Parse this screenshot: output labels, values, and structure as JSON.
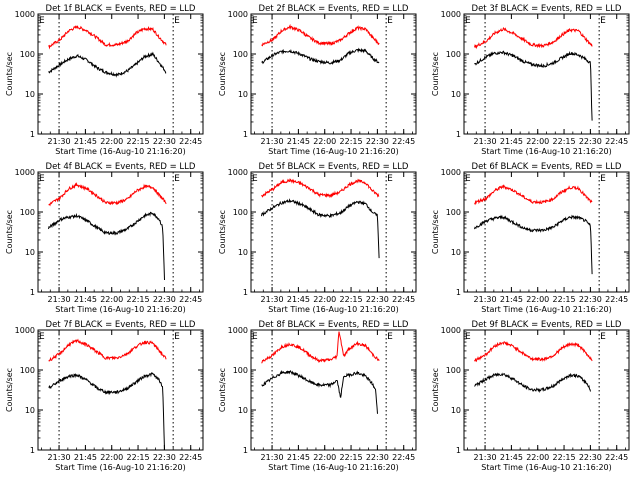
{
  "figure": {
    "ylabel": "Counts/sec",
    "xlabel": "Start Time (16-Aug-10 21:16:20)",
    "x_ticks": [
      "21:30",
      "21:45",
      "22:00",
      "22:15",
      "22:30",
      "22:45"
    ],
    "y_ticks": [
      "1",
      "10",
      "100",
      "1000"
    ],
    "colors": {
      "events": "#000000",
      "lld": "#ff0000",
      "axes": "#000000"
    }
  },
  "chart_data": [
    {
      "type": "line",
      "title": "Det 1f BLACK = Events, RED = LLD",
      "xlabel": "Start Time (16-Aug-10 21:16:20)",
      "ylabel": "Counts/sec",
      "yscale": "log",
      "ylim": [
        1,
        1000
      ],
      "xlim": [
        "21:18",
        "22:52"
      ],
      "marker_lines": [
        "21:30",
        "22:35"
      ],
      "E_labels": [
        {
          "x": "21:18",
          "text": "E"
        },
        {
          "x": "22:35",
          "text": "E"
        }
      ],
      "x_minutes": [
        21.0,
        32.0,
        45.0,
        60.0,
        72.0,
        85.0,
        92.0
      ],
      "series": [
        {
          "name": "Events",
          "color": "#000000",
          "x_minutes": [
            21,
            28,
            33,
            38,
            44,
            50,
            55,
            62,
            68,
            73,
            78,
            83,
            87,
            91
          ],
          "values": [
            35,
            55,
            75,
            90,
            70,
            45,
            35,
            30,
            38,
            55,
            85,
            100,
            60,
            35
          ]
        },
        {
          "name": "LLD",
          "color": "#ff0000",
          "x_minutes": [
            21,
            28,
            33,
            38,
            44,
            50,
            55,
            62,
            68,
            73,
            78,
            83,
            87,
            91
          ],
          "values": [
            150,
            230,
            380,
            480,
            380,
            250,
            170,
            170,
            210,
            330,
            430,
            420,
            260,
            170
          ]
        }
      ]
    },
    {
      "type": "line",
      "title": "Det 2f BLACK = Events, RED = LLD",
      "xlabel": "Start Time (16-Aug-10 21:16:20)",
      "ylabel": "Counts/sec",
      "yscale": "log",
      "ylim": [
        1,
        1000
      ],
      "xlim": [
        "21:18",
        "22:52"
      ],
      "marker_lines": [
        "21:30",
        "22:35"
      ],
      "E_labels": [
        {
          "x": "21:18",
          "text": "E"
        },
        {
          "x": "22:35",
          "text": "E"
        }
      ],
      "series": [
        {
          "name": "Events",
          "color": "#000000",
          "x_minutes": [
            21,
            28,
            33,
            38,
            44,
            50,
            55,
            62,
            68,
            73,
            78,
            83,
            87,
            91
          ],
          "values": [
            60,
            95,
            115,
            120,
            100,
            75,
            65,
            60,
            70,
            105,
            125,
            120,
            80,
            60
          ]
        },
        {
          "name": "LLD",
          "color": "#ff0000",
          "x_minutes": [
            21,
            28,
            33,
            38,
            44,
            50,
            55,
            62,
            68,
            73,
            78,
            83,
            87,
            91
          ],
          "values": [
            170,
            230,
            380,
            480,
            380,
            250,
            190,
            180,
            220,
            330,
            450,
            420,
            260,
            180
          ]
        }
      ]
    },
    {
      "type": "line",
      "title": "Det 3f BLACK = Events, RED = LLD",
      "xlabel": "Start Time (16-Aug-10 21:16:20)",
      "ylabel": "Counts/sec",
      "yscale": "log",
      "ylim": [
        1,
        1000
      ],
      "xlim": [
        "21:18",
        "22:52"
      ],
      "marker_lines": [
        "21:30",
        "22:35"
      ],
      "E_labels": [
        {
          "x": "21:18",
          "text": "E"
        },
        {
          "x": "22:35",
          "text": "E"
        }
      ],
      "series": [
        {
          "name": "Events",
          "color": "#000000",
          "x_minutes": [
            21,
            28,
            33,
            38,
            44,
            50,
            55,
            62,
            68,
            73,
            78,
            83,
            87,
            90,
            91
          ],
          "values": [
            55,
            85,
            105,
            110,
            90,
            65,
            55,
            50,
            60,
            80,
            105,
            95,
            75,
            60,
            2
          ]
        },
        {
          "name": "LLD",
          "color": "#ff0000",
          "x_minutes": [
            21,
            28,
            33,
            38,
            44,
            50,
            55,
            62,
            68,
            73,
            78,
            83,
            87,
            91
          ],
          "values": [
            150,
            210,
            330,
            420,
            330,
            230,
            170,
            160,
            200,
            300,
            400,
            380,
            240,
            160
          ]
        }
      ]
    },
    {
      "type": "line",
      "title": "Det 4f BLACK = Events, RED = LLD",
      "xlabel": "Start Time (16-Aug-10 21:16:20)",
      "ylabel": "Counts/sec",
      "yscale": "log",
      "ylim": [
        1,
        1000
      ],
      "xlim": [
        "21:18",
        "22:52"
      ],
      "marker_lines": [
        "21:30",
        "22:35"
      ],
      "E_labels": [
        {
          "x": "21:18",
          "text": "E"
        },
        {
          "x": "22:35",
          "text": "E"
        }
      ],
      "series": [
        {
          "name": "Events",
          "color": "#000000",
          "x_minutes": [
            21,
            28,
            33,
            38,
            44,
            50,
            55,
            62,
            68,
            73,
            78,
            83,
            87,
            89,
            90
          ],
          "values": [
            40,
            65,
            75,
            80,
            60,
            40,
            30,
            30,
            38,
            55,
            80,
            95,
            65,
            40,
            2
          ]
        },
        {
          "name": "LLD",
          "color": "#ff0000",
          "x_minutes": [
            21,
            28,
            33,
            38,
            44,
            50,
            55,
            62,
            68,
            73,
            78,
            83,
            87,
            91
          ],
          "values": [
            150,
            230,
            380,
            480,
            380,
            250,
            170,
            170,
            210,
            330,
            430,
            420,
            260,
            170
          ]
        }
      ]
    },
    {
      "type": "line",
      "title": "Det 5f BLACK = Events, RED = LLD",
      "xlabel": "Start Time (16-Aug-10 21:16:20)",
      "ylabel": "Counts/sec",
      "yscale": "log",
      "ylim": [
        1,
        1000
      ],
      "xlim": [
        "21:18",
        "22:52"
      ],
      "marker_lines": [
        "21:30",
        "22:35"
      ],
      "E_labels": [
        {
          "x": "21:18",
          "text": "E"
        },
        {
          "x": "22:35",
          "text": "E"
        }
      ],
      "series": [
        {
          "name": "Events",
          "color": "#000000",
          "x_minutes": [
            21,
            28,
            33,
            38,
            44,
            50,
            55,
            62,
            68,
            73,
            78,
            83,
            87,
            90,
            91
          ],
          "values": [
            85,
            130,
            170,
            190,
            160,
            115,
            85,
            80,
            95,
            140,
            180,
            160,
            100,
            80,
            7
          ]
        },
        {
          "name": "LLD",
          "color": "#ff0000",
          "x_minutes": [
            21,
            28,
            33,
            38,
            44,
            50,
            55,
            62,
            68,
            73,
            78,
            83,
            87,
            91
          ],
          "values": [
            250,
            380,
            550,
            620,
            520,
            380,
            270,
            260,
            320,
            480,
            600,
            540,
            340,
            250
          ]
        }
      ]
    },
    {
      "type": "line",
      "title": "Det 6f BLACK = Events, RED = LLD",
      "xlabel": "Start Time (16-Aug-10 21:16:20)",
      "ylabel": "Counts/sec",
      "yscale": "log",
      "ylim": [
        1,
        1000
      ],
      "xlim": [
        "21:18",
        "22:52"
      ],
      "marker_lines": [
        "21:30",
        "22:35"
      ],
      "E_labels": [
        {
          "x": "21:18",
          "text": "E"
        },
        {
          "x": "22:35",
          "text": "E"
        }
      ],
      "series": [
        {
          "name": "Events",
          "color": "#000000",
          "x_minutes": [
            21,
            28,
            33,
            38,
            44,
            50,
            55,
            62,
            68,
            73,
            78,
            83,
            87,
            90,
            91
          ],
          "values": [
            40,
            60,
            70,
            75,
            55,
            40,
            35,
            35,
            42,
            60,
            75,
            72,
            60,
            45,
            3
          ]
        },
        {
          "name": "LLD",
          "color": "#ff0000",
          "x_minutes": [
            21,
            28,
            33,
            38,
            44,
            50,
            55,
            62,
            68,
            73,
            78,
            83,
            87,
            91
          ],
          "values": [
            170,
            220,
            340,
            440,
            350,
            240,
            180,
            175,
            215,
            320,
            410,
            390,
            250,
            170
          ]
        }
      ]
    },
    {
      "type": "line",
      "title": "Det 7f BLACK = Events, RED = LLD",
      "xlabel": "Start Time (16-Aug-10 21:16:20)",
      "ylabel": "Counts/sec",
      "yscale": "log",
      "ylim": [
        1,
        1000
      ],
      "xlim": [
        "21:18",
        "22:52"
      ],
      "marker_lines": [
        "21:30",
        "22:35"
      ],
      "E_labels": [
        {
          "x": "21:18",
          "text": "E"
        },
        {
          "x": "22:35",
          "text": "E"
        }
      ],
      "series": [
        {
          "name": "Events",
          "color": "#000000",
          "x_minutes": [
            21,
            28,
            33,
            38,
            44,
            50,
            55,
            62,
            68,
            73,
            78,
            83,
            87,
            89,
            90
          ],
          "values": [
            35,
            55,
            70,
            75,
            55,
            35,
            28,
            28,
            35,
            50,
            70,
            80,
            55,
            35,
            1
          ]
        },
        {
          "name": "LLD",
          "color": "#ff0000",
          "x_minutes": [
            21,
            28,
            33,
            38,
            44,
            50,
            55,
            62,
            68,
            73,
            78,
            83,
            87,
            91
          ],
          "values": [
            170,
            260,
            430,
            540,
            420,
            280,
            200,
            200,
            260,
            380,
            500,
            470,
            300,
            190
          ]
        }
      ]
    },
    {
      "type": "line",
      "title": "Det 8f BLACK = Events, RED = LLD",
      "xlabel": "Start Time (16-Aug-10 21:16:20)",
      "ylabel": "Counts/sec",
      "yscale": "log",
      "ylim": [
        1,
        1000
      ],
      "xlim": [
        "21:18",
        "22:52"
      ],
      "marker_lines": [
        "21:30",
        "22:35"
      ],
      "E_labels": [
        {
          "x": "21:18",
          "text": "E"
        },
        {
          "x": "22:35",
          "text": "E"
        }
      ],
      "series": [
        {
          "name": "Events",
          "color": "#000000",
          "x_minutes": [
            21,
            28,
            33,
            38,
            44,
            50,
            55,
            62,
            66,
            68,
            70,
            73,
            78,
            83,
            87,
            89,
            90
          ],
          "values": [
            40,
            65,
            85,
            90,
            70,
            50,
            42,
            42,
            55,
            20,
            70,
            75,
            85,
            70,
            45,
            30,
            8
          ]
        },
        {
          "name": "LLD",
          "color": "#ff0000",
          "x_minutes": [
            21,
            28,
            33,
            38,
            44,
            50,
            55,
            62,
            66,
            67,
            70,
            73,
            78,
            83,
            87,
            91
          ],
          "values": [
            160,
            240,
            380,
            450,
            360,
            230,
            170,
            180,
            220,
            1000,
            220,
            340,
            460,
            400,
            250,
            170
          ]
        }
      ]
    },
    {
      "type": "line",
      "title": "Det 9f BLACK = Events, RED = LLD",
      "xlabel": "Start Time (16-Aug-10 21:16:20)",
      "ylabel": "Counts/sec",
      "yscale": "log",
      "ylim": [
        1,
        1000
      ],
      "xlim": [
        "21:18",
        "22:52"
      ],
      "marker_lines": [
        "21:30",
        "22:35"
      ],
      "E_labels": [
        {
          "x": "21:18",
          "text": "E"
        },
        {
          "x": "22:35",
          "text": "E"
        }
      ],
      "series": [
        {
          "name": "Events",
          "color": "#000000",
          "x_minutes": [
            21,
            28,
            33,
            38,
            44,
            50,
            55,
            62,
            68,
            73,
            78,
            83,
            87,
            89,
            90
          ],
          "values": [
            40,
            60,
            75,
            80,
            60,
            40,
            32,
            32,
            40,
            58,
            75,
            70,
            50,
            40,
            30
          ]
        },
        {
          "name": "LLD",
          "color": "#ff0000",
          "x_minutes": [
            21,
            28,
            33,
            38,
            44,
            50,
            55,
            62,
            68,
            73,
            78,
            83,
            87,
            91
          ],
          "values": [
            170,
            250,
            400,
            490,
            390,
            260,
            190,
            185,
            230,
            350,
            450,
            420,
            270,
            180
          ]
        }
      ]
    }
  ]
}
